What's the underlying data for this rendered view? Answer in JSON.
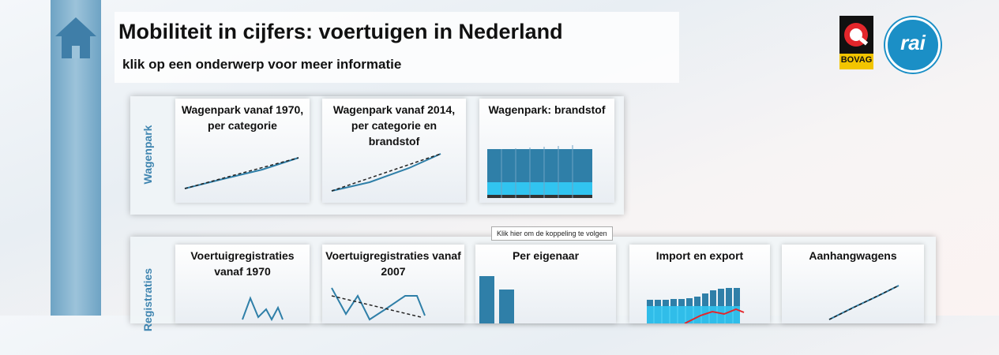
{
  "header": {
    "title": "Mobiliteit in cijfers: voertuigen in Nederland",
    "subtitle": "klik op een onderwerp voor meer informatie"
  },
  "logos": {
    "bovag": "BOVAG",
    "rai": "rai"
  },
  "sections": [
    {
      "label": "Wagenpark",
      "tiles": [
        "Wagenpark vanaf 1970, per categorie",
        "Wagenpark vanaf 2014, per categorie en brandstof",
        "Wagenpark: brandstof"
      ]
    },
    {
      "label": "Registraties",
      "tiles": [
        "Voertuigregistraties vanaf 1970",
        "Voertuigregistraties vanaf 2007",
        "Per eigenaar",
        "Import en export",
        "Aanhangwagens"
      ]
    }
  ],
  "tooltip": "Klik hier om de koppeling te volgen"
}
